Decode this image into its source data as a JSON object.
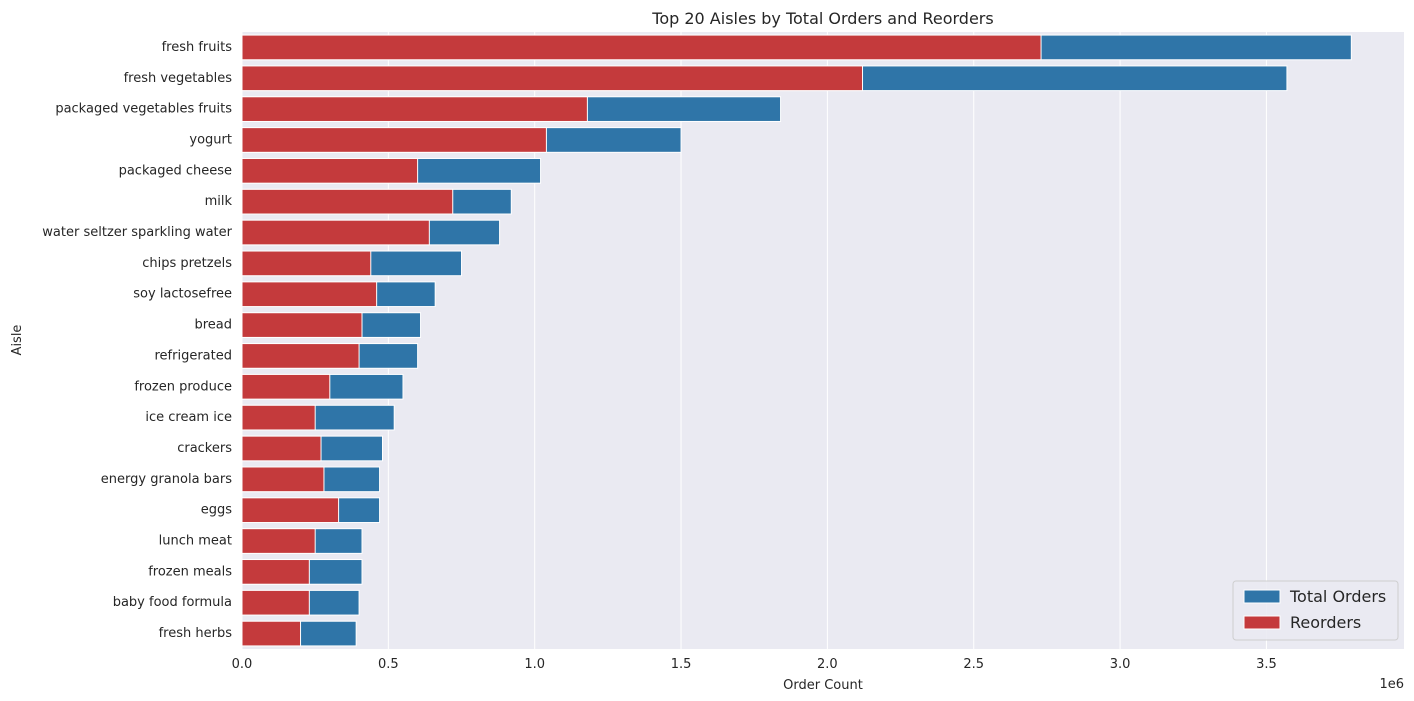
{
  "chart_data": {
    "type": "bar",
    "orientation": "horizontal",
    "title": "Top 20 Aisles by Total Orders and Reorders",
    "xlabel": "Order Count",
    "ylabel": "Aisle",
    "x_multiplier_label": "1e6",
    "xlim": [
      0,
      3.97
    ],
    "x_unit_scale": 1000000,
    "x_ticks": [
      0.0,
      0.5,
      1.0,
      1.5,
      2.0,
      2.5,
      3.0,
      3.5
    ],
    "x_tick_labels": [
      "0.0",
      "0.5",
      "1.0",
      "1.5",
      "2.0",
      "2.5",
      "3.0",
      "3.5"
    ],
    "grid": true,
    "legend_position": "bottom-right",
    "categories": [
      "fresh fruits",
      "fresh vegetables",
      "packaged vegetables fruits",
      "yogurt",
      "packaged cheese",
      "milk",
      "water seltzer sparkling water",
      "chips pretzels",
      "soy lactosefree",
      "bread",
      "refrigerated",
      "frozen produce",
      "ice cream ice",
      "crackers",
      "energy granola bars",
      "eggs",
      "lunch meat",
      "frozen meals",
      "baby food formula",
      "fresh herbs"
    ],
    "series": [
      {
        "name": "Total Orders",
        "color": "#2f75a8",
        "values": [
          3.79,
          3.57,
          1.84,
          1.5,
          1.02,
          0.92,
          0.88,
          0.75,
          0.66,
          0.61,
          0.6,
          0.55,
          0.52,
          0.48,
          0.47,
          0.47,
          0.41,
          0.41,
          0.4,
          0.39
        ]
      },
      {
        "name": "Reorders",
        "color": "#c43a3c",
        "values": [
          2.73,
          2.12,
          1.18,
          1.04,
          0.6,
          0.72,
          0.64,
          0.44,
          0.46,
          0.41,
          0.4,
          0.3,
          0.25,
          0.27,
          0.28,
          0.33,
          0.25,
          0.23,
          0.23,
          0.2
        ]
      }
    ]
  }
}
